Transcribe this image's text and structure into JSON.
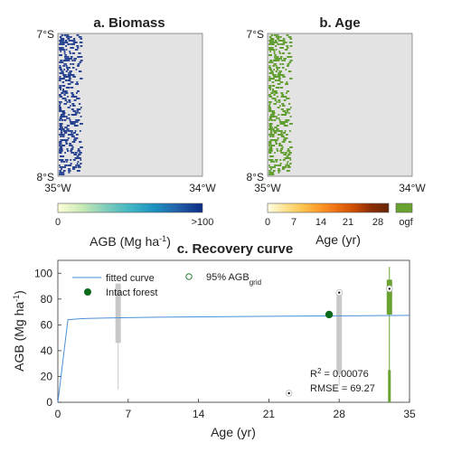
{
  "panels": {
    "a": {
      "title": "a. Biomass",
      "y_top": "7°S",
      "y_bottom": "8°S",
      "x_left": "35°W",
      "x_right": "34°W",
      "colorbar": {
        "ticks": [
          "0",
          ">100"
        ],
        "label_text": "AGB (Mg ha",
        "label_sup": "-1",
        "label_close": ")",
        "colors": [
          "#ffffd9",
          "#c7e9b4",
          "#7fcdbb",
          "#41b6c4",
          "#1d91c0",
          "#225ea8",
          "#0c2c84"
        ]
      }
    },
    "b": {
      "title": "b. Age",
      "y_top": "7°S",
      "y_bottom": "8°S",
      "x_left": "35°W",
      "x_right": "34°W",
      "colorbar": {
        "ticks": [
          "0",
          "7",
          "14",
          "21",
          "28",
          "ogf"
        ],
        "label": "Age (yr)",
        "colors": [
          "#ffffe5",
          "#fee391",
          "#fec44f",
          "#fe9929",
          "#ec7014",
          "#cc4c02",
          "#8c2d04",
          "#662506"
        ],
        "ogf_color": "#6aa232"
      }
    }
  },
  "colors": {
    "map_background": "#e3e3e3",
    "biomass_pixels": "#1f3b8c",
    "age_pixels": "#5a9a26",
    "fitted_curve": "#4a90d9",
    "intact_forest": "#0b6b1a",
    "grid_box": "#c8c8c8",
    "ogf_box": "#6aa232"
  },
  "chart_data": {
    "type": "line",
    "title": "c. Recovery curve",
    "xlabel": "Age (yr)",
    "ylabel_text": "AGB (Mg ha",
    "ylabel_sup": "-1",
    "ylabel_close": ")",
    "xlim": [
      0,
      35
    ],
    "ylim": [
      0,
      110
    ],
    "xticks": [
      0,
      7,
      14,
      21,
      28,
      35
    ],
    "yticks": [
      0,
      20,
      40,
      60,
      80,
      100
    ],
    "legend": {
      "fitted_curve": "fitted curve",
      "intact_forest": "Intact forest",
      "agb_grid_main": "95% AGB",
      "agb_grid_sub": "grid"
    },
    "fitted_curve": {
      "x": [
        0,
        1,
        2,
        3,
        5,
        7,
        10,
        14,
        21,
        28,
        35
      ],
      "y": [
        0,
        64,
        64.6,
        65,
        65.3,
        65.6,
        65.9,
        66.2,
        66.6,
        67,
        67.3
      ]
    },
    "boxes": [
      {
        "x": 6,
        "whisker": [
          10,
          92
        ],
        "box": [
          46,
          92
        ],
        "color": "#c8c8c8",
        "marker": null
      },
      {
        "x": 23,
        "whisker": [
          7,
          7
        ],
        "box": [
          7,
          7
        ],
        "color": "#c8c8c8",
        "marker": 7
      },
      {
        "x": 28,
        "whisker": [
          13,
          85
        ],
        "box": [
          22,
          85
        ],
        "color": "#c8c8c8",
        "marker": 85
      },
      {
        "x": 33,
        "whisker": [
          0,
          105
        ],
        "box": [
          68,
          95
        ],
        "color": "#6aa232",
        "marker": 88
      }
    ],
    "ogf_low_box": {
      "x": 33,
      "range": [
        0,
        25
      ]
    },
    "intact_forest": {
      "x": 27,
      "y": 68
    },
    "stats": {
      "r2_label": "R",
      "r2_sup": "2",
      "r2_value": " = 0.00076",
      "rmse": "RMSE = 69.27"
    }
  }
}
